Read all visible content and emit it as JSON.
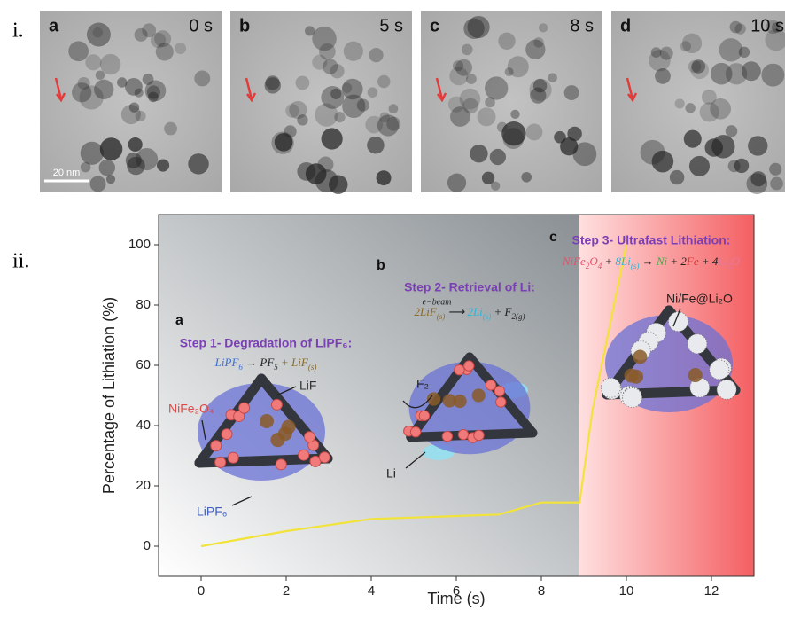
{
  "figure": {
    "panel_i_label": "i.",
    "panel_ii_label": "ii.",
    "images": [
      {
        "label": "a",
        "time": "0 s"
      },
      {
        "label": "b",
        "time": "5 s"
      },
      {
        "label": "c",
        "time": "8 s"
      },
      {
        "label": "d",
        "time": "10 s"
      }
    ],
    "scale_bar": "20 nm"
  },
  "chart_data": {
    "type": "line",
    "xlabel": "Time (s)",
    "ylabel": "Percentage of Lithiation (%)",
    "x": [
      0,
      1,
      2,
      3,
      4,
      5,
      6,
      7,
      8,
      8.9,
      9.2,
      10
    ],
    "values": [
      0,
      2.5,
      5,
      7,
      9,
      9.5,
      10,
      10.5,
      14.5,
      14.5,
      45,
      100
    ],
    "color": "#f2e33a",
    "xlim": [
      -1,
      13
    ],
    "xticks": [
      0,
      2,
      4,
      6,
      8,
      10,
      12
    ],
    "ylim": [
      -10,
      110
    ],
    "yticks": [
      0,
      20,
      40,
      60,
      80,
      100
    ],
    "steps": [
      {
        "letter": "a",
        "title": "Step 1- Degradation of LiPF₆:",
        "equation": [
          {
            "text": "LiPF",
            "color": "#3f6fd0"
          },
          {
            "text": "6",
            "sub": true,
            "color": "#3f6fd0"
          },
          {
            "text": " → PF",
            "color": "#222222"
          },
          {
            "text": "5",
            "sub": true,
            "color": "#222222"
          },
          {
            "text": " + LiF",
            "color": "#8a6a2a"
          },
          {
            "text": "(s)",
            "sub": true,
            "color": "#8a6a2a"
          }
        ]
      },
      {
        "letter": "b",
        "title": "Step 2- Retrieval of Li:",
        "arrow_label": "e−beam",
        "equation": [
          {
            "text": "2LiF",
            "color": "#8a6a2a"
          },
          {
            "text": "(s)",
            "sub": true,
            "color": "#8a6a2a"
          },
          {
            "text": " ⟶ ",
            "color": "#222222"
          },
          {
            "text": "2Li",
            "color": "#2fb6d8"
          },
          {
            "text": "(s)",
            "sub": true,
            "color": "#2fb6d8"
          },
          {
            "text": " + F",
            "color": "#222222"
          },
          {
            "text": "2(g)",
            "sub": true,
            "color": "#222222"
          }
        ]
      },
      {
        "letter": "c",
        "title": "Step 3- Ultrafast Lithiation:",
        "equation": [
          {
            "text": "NiFe",
            "color": "#e8506a"
          },
          {
            "text": "2",
            "sub": true,
            "color": "#e8506a"
          },
          {
            "text": "O",
            "color": "#e8506a"
          },
          {
            "text": "4",
            "sub": true,
            "color": "#e8506a"
          },
          {
            "text": " + ",
            "color": "#222222"
          },
          {
            "text": "8Li",
            "color": "#2fb6d8"
          },
          {
            "text": "(s)",
            "sub": true,
            "color": "#2fb6d8"
          },
          {
            "text": " → ",
            "color": "#222222"
          },
          {
            "text": "Ni",
            "color": "#3cb04a"
          },
          {
            "text": " + 2",
            "color": "#222222"
          },
          {
            "text": "Fe",
            "color": "#d83a3a"
          },
          {
            "text": " + 4",
            "color": "#222222"
          },
          {
            "text": "Li",
            "color": "#e07aa0"
          },
          {
            "text": "2",
            "sub": true,
            "color": "#e07aa0"
          },
          {
            "text": "O",
            "color": "#e07aa0"
          }
        ]
      }
    ],
    "labels": [
      "NiFe₂O₄",
      "LiF",
      "LiPF₆",
      "F₂",
      "Li",
      "Ni/Fe@Li₂O"
    ]
  }
}
